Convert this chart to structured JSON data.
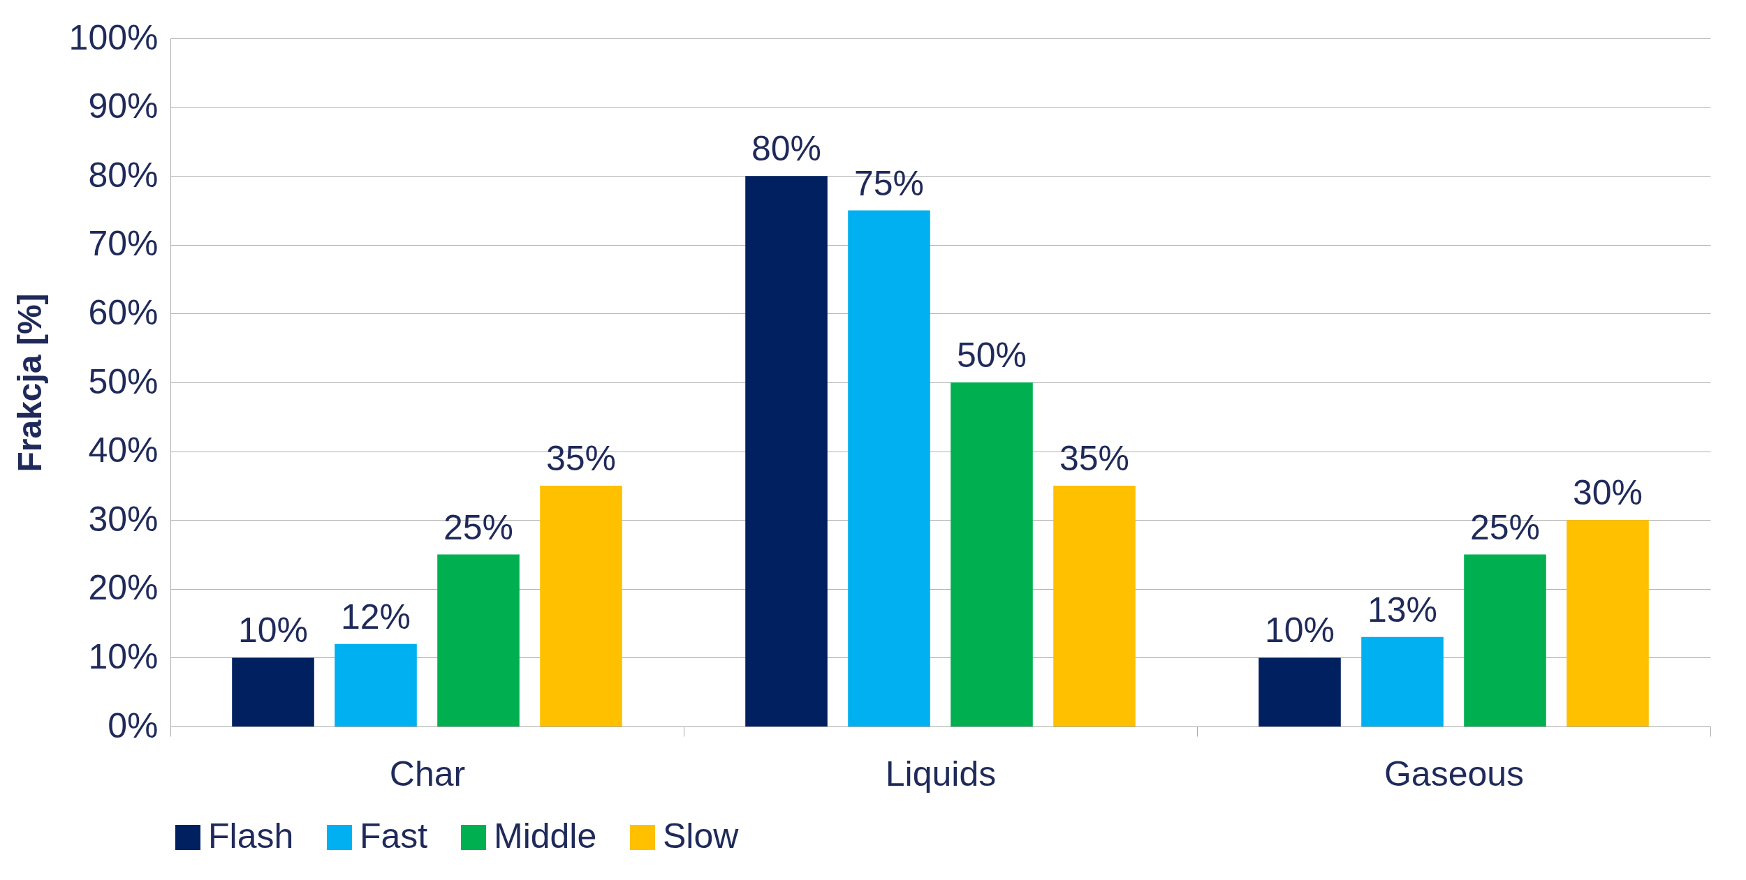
{
  "chart_data": {
    "type": "bar",
    "ylabel": "Frakcja [%]",
    "categories": [
      "Char",
      "Liquids",
      "Gaseous"
    ],
    "series": [
      {
        "name": "Flash",
        "color": "#002060",
        "values": [
          10,
          80,
          10
        ],
        "value_labels": [
          "10%",
          "80%",
          "10%"
        ]
      },
      {
        "name": "Fast",
        "color": "#00b0f0",
        "values": [
          12,
          75,
          13
        ],
        "value_labels": [
          "12%",
          "75%",
          "13%"
        ]
      },
      {
        "name": "Middle",
        "color": "#00b050",
        "values": [
          25,
          50,
          25
        ],
        "value_labels": [
          "25%",
          "50%",
          "25%"
        ]
      },
      {
        "name": "Slow",
        "color": "#ffc000",
        "values": [
          35,
          35,
          30
        ],
        "value_labels": [
          "35%",
          "35%",
          "30%"
        ]
      }
    ],
    "ylim": [
      0,
      100
    ],
    "yticks": [
      {
        "value": 0,
        "label": "0%"
      },
      {
        "value": 10,
        "label": "10%"
      },
      {
        "value": 20,
        "label": "20%"
      },
      {
        "value": 30,
        "label": "30%"
      },
      {
        "value": 40,
        "label": "40%"
      },
      {
        "value": 50,
        "label": "50%"
      },
      {
        "value": 60,
        "label": "60%"
      },
      {
        "value": 70,
        "label": "70%"
      },
      {
        "value": 80,
        "label": "80%"
      },
      {
        "value": 90,
        "label": "90%"
      },
      {
        "value": 100,
        "label": "100%"
      }
    ],
    "grid": "y",
    "legend": "bottom"
  }
}
